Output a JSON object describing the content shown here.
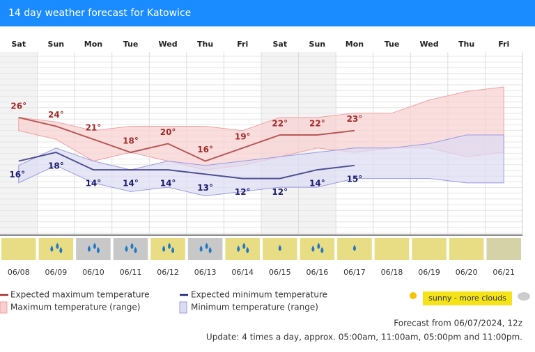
{
  "chart_data": {
    "type": "line",
    "title": "14 day weather forecast for Katowice",
    "categories": [
      "Sat",
      "Sun",
      "Mon",
      "Tue",
      "Wed",
      "Thu",
      "Fri",
      "Sat",
      "Sun",
      "Mon",
      "Tue",
      "Wed",
      "Thu",
      "Fri"
    ],
    "dates": [
      "06/08",
      "06/09",
      "06/10",
      "06/11",
      "06/12",
      "06/13",
      "06/14",
      "06/15",
      "06/16",
      "06/17",
      "06/18",
      "06/19",
      "06/20",
      "06/21"
    ],
    "ylim": [
      -1,
      41
    ],
    "series": [
      {
        "name": "Expected maximum temperature",
        "color": "#a52a2a",
        "values": [
          26,
          24,
          21,
          18,
          20,
          16,
          19,
          22,
          22,
          23,
          null,
          null,
          null,
          null
        ],
        "value_labels": [
          "26°",
          "24°",
          "21°",
          "18°",
          "20°",
          "16°",
          "19°",
          "22°",
          "22°",
          "23°",
          null,
          null,
          null,
          null
        ]
      },
      {
        "name": "Expected minimum temperature",
        "color": "#1c1c70",
        "values": [
          16,
          18,
          14,
          14,
          14,
          13,
          12,
          12,
          14,
          15,
          null,
          null,
          null,
          null
        ],
        "value_labels": [
          "16°",
          "18°",
          "14°",
          "14°",
          "14°",
          "13°",
          "12°",
          "12°",
          "14°",
          "15°",
          null,
          null,
          null,
          null
        ]
      }
    ],
    "ranges": [
      {
        "name": "Maximum temperature (range)",
        "color": "#f8d0d0",
        "edge": "#f0a0a0",
        "high": [
          26,
          25,
          23,
          24,
          24,
          24,
          23,
          26,
          26,
          27,
          27,
          30,
          32,
          33
        ],
        "low": [
          23,
          21,
          16,
          18,
          16,
          14,
          15,
          17,
          19,
          18,
          19,
          19,
          17,
          18
        ]
      },
      {
        "name": "Minimum temperature (range)",
        "color": "#dcdcf4",
        "edge": "#9a9ae0",
        "high": [
          15,
          19,
          16,
          14,
          16,
          15,
          16,
          17,
          18,
          19,
          19,
          20,
          22,
          22
        ],
        "low": [
          11,
          15,
          11,
          9,
          10,
          8,
          9,
          10,
          10,
          12,
          12,
          12,
          11,
          11
        ]
      }
    ],
    "weather_legend": "sunny - more clouds",
    "forecast_note": "Forecast from 06/07/2024, 12z",
    "update_note": "Update: 4 times a day, approx. 05:00am, 11:00am, 05:00pm and 11:00pm."
  }
}
